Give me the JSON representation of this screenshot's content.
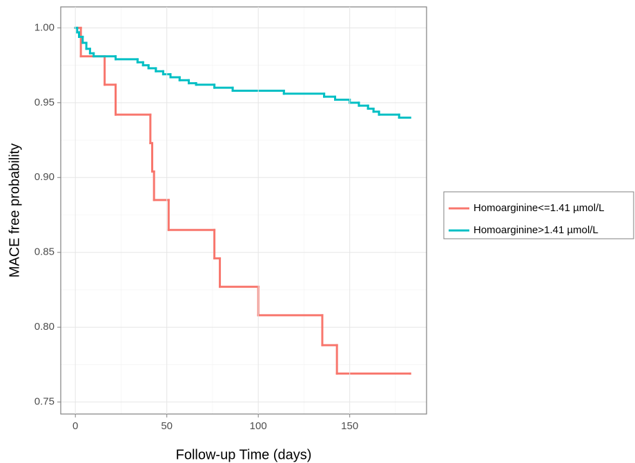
{
  "chart_data": {
    "type": "step",
    "x_label": "Follow-up Time (days)",
    "y_label": "MACE free probability",
    "xlim": [
      -8,
      192
    ],
    "ylim": [
      0.742,
      1.014
    ],
    "xticks": [
      0,
      50,
      100,
      150
    ],
    "yticks": [
      {
        "value": 0.75,
        "label": "0.75"
      },
      {
        "value": 0.8,
        "label": "0.80"
      },
      {
        "value": 0.85,
        "label": "0.85"
      },
      {
        "value": 0.9,
        "label": "0.90"
      },
      {
        "value": 0.95,
        "label": "0.95"
      },
      {
        "value": 1.0,
        "label": "1.00"
      }
    ],
    "grid": true,
    "legend_position": "right",
    "series": [
      {
        "name": "Homoarginine<=1.41 µmol/L",
        "color": "#F8766D",
        "x": [
          0,
          3,
          16,
          22,
          41,
          42,
          43,
          51,
          76,
          79,
          100,
          135,
          143,
          183
        ],
        "values": [
          1.0,
          0.981,
          0.962,
          0.942,
          0.923,
          0.904,
          0.885,
          0.865,
          0.846,
          0.827,
          0.808,
          0.788,
          0.769,
          0.769
        ]
      },
      {
        "name": "Homoarginine>1.41 µmol/L",
        "color": "#00BFC4",
        "x": [
          0,
          1,
          2,
          4,
          6,
          8,
          10,
          22,
          34,
          37,
          40,
          44,
          48,
          52,
          57,
          62,
          66,
          76,
          86,
          114,
          136,
          142,
          150,
          155,
          160,
          163,
          166,
          177,
          183
        ],
        "values": [
          1.0,
          0.997,
          0.994,
          0.99,
          0.986,
          0.983,
          0.981,
          0.979,
          0.977,
          0.975,
          0.973,
          0.971,
          0.969,
          0.967,
          0.965,
          0.963,
          0.962,
          0.96,
          0.958,
          0.956,
          0.954,
          0.952,
          0.95,
          0.948,
          0.946,
          0.944,
          0.942,
          0.94,
          0.94
        ]
      }
    ]
  }
}
